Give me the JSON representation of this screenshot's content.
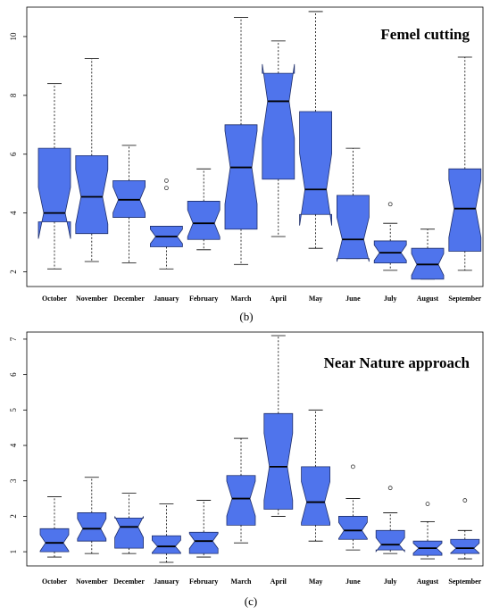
{
  "chart_data": [
    {
      "type": "box",
      "title": "Femel cutting",
      "caption": "(b)",
      "categories": [
        "October",
        "November",
        "December",
        "January",
        "February",
        "March",
        "April",
        "May",
        "June",
        "July",
        "August",
        "September"
      ],
      "yticks": [
        2,
        4,
        6,
        8,
        10
      ],
      "ylim": [
        1.5,
        11.0
      ],
      "notched": true,
      "box_color": "#4F74EC",
      "boxes": [
        {
          "min": 2.1,
          "q1": 3.7,
          "median": 4.0,
          "q3": 6.2,
          "max": 8.4,
          "outliers": []
        },
        {
          "min": 2.35,
          "q1": 3.3,
          "median": 4.55,
          "q3": 5.95,
          "max": 9.25,
          "outliers": []
        },
        {
          "min": 2.3,
          "q1": 3.85,
          "median": 4.45,
          "q3": 5.1,
          "max": 6.3,
          "outliers": []
        },
        {
          "min": 2.1,
          "q1": 2.85,
          "median": 3.2,
          "q3": 3.55,
          "max": 3.55,
          "outliers": [
            4.85,
            5.1
          ]
        },
        {
          "min": 2.75,
          "q1": 3.1,
          "median": 3.65,
          "q3": 4.4,
          "max": 5.5,
          "outliers": []
        },
        {
          "min": 2.25,
          "q1": 3.45,
          "median": 5.55,
          "q3": 7.0,
          "max": 10.65,
          "outliers": []
        },
        {
          "min": 3.2,
          "q1": 5.15,
          "median": 7.8,
          "q3": 8.75,
          "max": 9.85,
          "outliers": []
        },
        {
          "min": 2.8,
          "q1": 3.95,
          "median": 4.8,
          "q3": 7.45,
          "max": 10.85,
          "outliers": []
        },
        {
          "min": 2.45,
          "q1": 2.45,
          "median": 3.1,
          "q3": 4.6,
          "max": 6.2,
          "outliers": []
        },
        {
          "min": 2.05,
          "q1": 2.3,
          "median": 2.65,
          "q3": 3.05,
          "max": 3.65,
          "outliers": [
            4.3
          ]
        },
        {
          "min": 1.75,
          "q1": 1.75,
          "median": 2.25,
          "q3": 2.8,
          "max": 3.45,
          "outliers": []
        },
        {
          "min": 2.05,
          "q1": 2.7,
          "median": 4.15,
          "q3": 5.5,
          "max": 9.3,
          "outliers": []
        }
      ]
    },
    {
      "type": "box",
      "title": "Near Nature approach",
      "caption": "(c)",
      "categories": [
        "October",
        "November",
        "December",
        "January",
        "February",
        "March",
        "April",
        "May",
        "June",
        "July",
        "August",
        "September"
      ],
      "yticks": [
        1,
        2,
        3,
        4,
        5,
        6,
        7
      ],
      "ylim": [
        0.6,
        7.2
      ],
      "notched": true,
      "box_color": "#4F74EC",
      "boxes": [
        {
          "min": 0.85,
          "q1": 1.0,
          "median": 1.25,
          "q3": 1.65,
          "max": 2.55,
          "outliers": []
        },
        {
          "min": 0.95,
          "q1": 1.3,
          "median": 1.65,
          "q3": 2.1,
          "max": 3.1,
          "outliers": []
        },
        {
          "min": 0.95,
          "q1": 1.1,
          "median": 1.7,
          "q3": 1.95,
          "max": 2.65,
          "outliers": []
        },
        {
          "min": 0.7,
          "q1": 0.95,
          "median": 1.15,
          "q3": 1.45,
          "max": 2.35,
          "outliers": []
        },
        {
          "min": 0.85,
          "q1": 0.95,
          "median": 1.3,
          "q3": 1.55,
          "max": 2.45,
          "outliers": []
        },
        {
          "min": 1.25,
          "q1": 1.75,
          "median": 2.5,
          "q3": 3.15,
          "max": 4.2,
          "outliers": []
        },
        {
          "min": 2.0,
          "q1": 2.2,
          "median": 3.4,
          "q3": 4.9,
          "max": 7.1,
          "outliers": []
        },
        {
          "min": 1.3,
          "q1": 1.75,
          "median": 2.4,
          "q3": 3.4,
          "max": 5.0,
          "outliers": []
        },
        {
          "min": 1.05,
          "q1": 1.35,
          "median": 1.6,
          "q3": 2.0,
          "max": 2.5,
          "outliers": [
            3.4
          ]
        },
        {
          "min": 0.95,
          "q1": 1.05,
          "median": 1.2,
          "q3": 1.6,
          "max": 2.1,
          "outliers": [
            2.8
          ]
        },
        {
          "min": 0.8,
          "q1": 0.9,
          "median": 1.1,
          "q3": 1.3,
          "max": 1.85,
          "outliers": [
            2.35
          ]
        },
        {
          "min": 0.8,
          "q1": 0.95,
          "median": 1.1,
          "q3": 1.35,
          "max": 1.6,
          "outliers": [
            2.45
          ]
        }
      ]
    }
  ]
}
